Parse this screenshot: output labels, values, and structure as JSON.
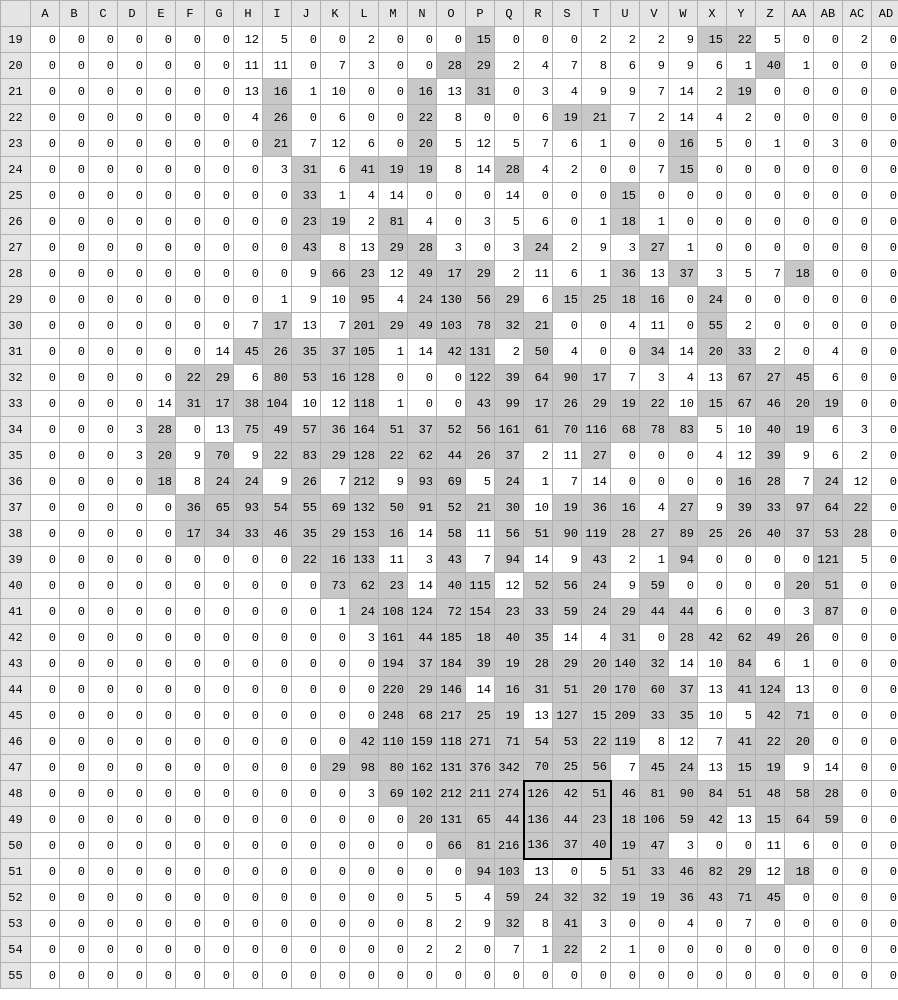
{
  "columns": [
    "A",
    "B",
    "C",
    "D",
    "E",
    "F",
    "G",
    "H",
    "I",
    "J",
    "K",
    "L",
    "M",
    "N",
    "O",
    "P",
    "Q",
    "R",
    "S",
    "T",
    "U",
    "V",
    "W",
    "X",
    "Y",
    "Z",
    "AA",
    "AB",
    "AC",
    "AD"
  ],
  "firstRow": 19,
  "lastRow": 55,
  "shadeThreshold": 15,
  "selection": {
    "row1": 48,
    "row2": 50,
    "colIdx1": 17,
    "colIdx2": 19
  },
  "rows": {
    "19": [
      0,
      0,
      0,
      0,
      0,
      0,
      0,
      12,
      5,
      0,
      0,
      2,
      0,
      0,
      0,
      15,
      0,
      0,
      0,
      2,
      2,
      2,
      9,
      15,
      22,
      5,
      0,
      0,
      2,
      0
    ],
    "20": [
      0,
      0,
      0,
      0,
      0,
      0,
      0,
      11,
      11,
      0,
      7,
      3,
      0,
      0,
      28,
      29,
      2,
      4,
      7,
      8,
      6,
      9,
      9,
      6,
      1,
      40,
      1,
      0,
      0,
      0
    ],
    "21": [
      0,
      0,
      0,
      0,
      0,
      0,
      0,
      13,
      16,
      1,
      10,
      0,
      0,
      16,
      13,
      31,
      0,
      3,
      4,
      9,
      9,
      7,
      14,
      2,
      19,
      0,
      0,
      0,
      0,
      0
    ],
    "22": [
      0,
      0,
      0,
      0,
      0,
      0,
      0,
      4,
      26,
      0,
      6,
      0,
      0,
      22,
      8,
      0,
      0,
      6,
      19,
      21,
      7,
      2,
      14,
      4,
      2,
      0,
      0,
      0,
      0,
      0
    ],
    "23": [
      0,
      0,
      0,
      0,
      0,
      0,
      0,
      0,
      21,
      7,
      12,
      6,
      0,
      20,
      5,
      12,
      5,
      7,
      6,
      1,
      0,
      0,
      16,
      5,
      0,
      1,
      0,
      3,
      0,
      0
    ],
    "24": [
      0,
      0,
      0,
      0,
      0,
      0,
      0,
      0,
      3,
      31,
      6,
      41,
      19,
      19,
      8,
      14,
      28,
      4,
      2,
      0,
      0,
      7,
      15,
      0,
      0,
      0,
      0,
      0,
      0,
      0
    ],
    "25": [
      0,
      0,
      0,
      0,
      0,
      0,
      0,
      0,
      0,
      33,
      1,
      4,
      14,
      0,
      0,
      0,
      14,
      0,
      0,
      0,
      15,
      0,
      0,
      0,
      0,
      0,
      0,
      0,
      0,
      0
    ],
    "26": [
      0,
      0,
      0,
      0,
      0,
      0,
      0,
      0,
      0,
      23,
      19,
      2,
      81,
      4,
      0,
      3,
      5,
      6,
      0,
      1,
      18,
      1,
      0,
      0,
      0,
      0,
      0,
      0,
      0,
      0
    ],
    "27": [
      0,
      0,
      0,
      0,
      0,
      0,
      0,
      0,
      0,
      43,
      8,
      13,
      29,
      28,
      3,
      0,
      3,
      24,
      2,
      9,
      3,
      27,
      1,
      0,
      0,
      0,
      0,
      0,
      0,
      0
    ],
    "28": [
      0,
      0,
      0,
      0,
      0,
      0,
      0,
      0,
      0,
      9,
      66,
      23,
      12,
      49,
      17,
      29,
      2,
      11,
      6,
      1,
      36,
      13,
      37,
      3,
      5,
      7,
      18,
      0,
      0,
      0
    ],
    "29": [
      0,
      0,
      0,
      0,
      0,
      0,
      0,
      0,
      1,
      9,
      10,
      95,
      4,
      24,
      130,
      56,
      29,
      6,
      15,
      25,
      18,
      16,
      0,
      24,
      0,
      0,
      0,
      0,
      0,
      0
    ],
    "30": [
      0,
      0,
      0,
      0,
      0,
      0,
      0,
      7,
      17,
      13,
      7,
      201,
      29,
      49,
      103,
      78,
      32,
      21,
      0,
      0,
      4,
      11,
      0,
      55,
      2,
      0,
      0,
      0,
      0,
      0
    ],
    "31": [
      0,
      0,
      0,
      0,
      0,
      0,
      14,
      45,
      26,
      35,
      37,
      105,
      1,
      14,
      42,
      131,
      2,
      50,
      4,
      0,
      0,
      34,
      14,
      20,
      33,
      2,
      0,
      4,
      0,
      0
    ],
    "32": [
      0,
      0,
      0,
      0,
      0,
      22,
      29,
      6,
      80,
      53,
      16,
      128,
      0,
      0,
      0,
      122,
      39,
      64,
      90,
      17,
      7,
      3,
      4,
      13,
      67,
      27,
      45,
      6,
      0,
      0
    ],
    "33": [
      0,
      0,
      0,
      0,
      14,
      31,
      17,
      38,
      104,
      10,
      12,
      118,
      1,
      0,
      0,
      43,
      99,
      17,
      26,
      29,
      19,
      22,
      10,
      15,
      67,
      46,
      20,
      19,
      0,
      0
    ],
    "34": [
      0,
      0,
      0,
      3,
      28,
      0,
      13,
      75,
      49,
      57,
      36,
      164,
      51,
      37,
      52,
      56,
      161,
      61,
      70,
      116,
      68,
      78,
      83,
      5,
      10,
      40,
      19,
      6,
      3,
      0
    ],
    "35": [
      0,
      0,
      0,
      3,
      20,
      9,
      70,
      9,
      22,
      83,
      29,
      128,
      22,
      62,
      44,
      26,
      37,
      2,
      11,
      27,
      0,
      0,
      0,
      4,
      12,
      39,
      9,
      6,
      2,
      0
    ],
    "36": [
      0,
      0,
      0,
      0,
      18,
      8,
      24,
      24,
      9,
      26,
      7,
      212,
      9,
      93,
      69,
      5,
      24,
      1,
      7,
      14,
      0,
      0,
      0,
      0,
      16,
      28,
      7,
      24,
      12,
      0
    ],
    "37": [
      0,
      0,
      0,
      0,
      0,
      36,
      65,
      93,
      54,
      55,
      69,
      132,
      50,
      91,
      52,
      21,
      30,
      10,
      19,
      36,
      16,
      4,
      27,
      9,
      39,
      33,
      97,
      64,
      22,
      0
    ],
    "38": [
      0,
      0,
      0,
      0,
      0,
      17,
      34,
      33,
      46,
      35,
      29,
      153,
      16,
      14,
      58,
      11,
      56,
      51,
      90,
      119,
      28,
      27,
      89,
      25,
      26,
      40,
      37,
      53,
      28,
      0
    ],
    "39": [
      0,
      0,
      0,
      0,
      0,
      0,
      0,
      0,
      0,
      22,
      16,
      133,
      11,
      3,
      43,
      7,
      94,
      14,
      9,
      43,
      2,
      1,
      94,
      0,
      0,
      0,
      0,
      121,
      5,
      0
    ],
    "40": [
      0,
      0,
      0,
      0,
      0,
      0,
      0,
      0,
      0,
      0,
      73,
      62,
      23,
      14,
      40,
      115,
      12,
      52,
      56,
      24,
      9,
      59,
      0,
      0,
      0,
      0,
      20,
      51,
      0,
      0
    ],
    "41": [
      0,
      0,
      0,
      0,
      0,
      0,
      0,
      0,
      0,
      0,
      1,
      24,
      108,
      124,
      72,
      154,
      23,
      33,
      59,
      24,
      29,
      44,
      44,
      6,
      0,
      0,
      3,
      87,
      0,
      0
    ],
    "42": [
      0,
      0,
      0,
      0,
      0,
      0,
      0,
      0,
      0,
      0,
      0,
      3,
      161,
      44,
      185,
      18,
      40,
      35,
      14,
      4,
      31,
      0,
      28,
      42,
      62,
      49,
      26,
      0,
      0,
      0
    ],
    "43": [
      0,
      0,
      0,
      0,
      0,
      0,
      0,
      0,
      0,
      0,
      0,
      0,
      194,
      37,
      184,
      39,
      19,
      28,
      29,
      20,
      140,
      32,
      14,
      10,
      84,
      6,
      1,
      0,
      0,
      0
    ],
    "44": [
      0,
      0,
      0,
      0,
      0,
      0,
      0,
      0,
      0,
      0,
      0,
      0,
      220,
      29,
      146,
      14,
      16,
      31,
      51,
      20,
      170,
      60,
      37,
      13,
      41,
      124,
      13,
      0,
      0,
      0
    ],
    "45": [
      0,
      0,
      0,
      0,
      0,
      0,
      0,
      0,
      0,
      0,
      0,
      0,
      248,
      68,
      217,
      25,
      19,
      13,
      127,
      15,
      209,
      33,
      35,
      10,
      5,
      42,
      71,
      0,
      0,
      0
    ],
    "46": [
      0,
      0,
      0,
      0,
      0,
      0,
      0,
      0,
      0,
      0,
      0,
      42,
      110,
      159,
      118,
      271,
      71,
      54,
      53,
      22,
      119,
      8,
      12,
      7,
      41,
      22,
      20,
      0,
      0,
      0
    ],
    "47": [
      0,
      0,
      0,
      0,
      0,
      0,
      0,
      0,
      0,
      0,
      29,
      98,
      80,
      162,
      131,
      376,
      342,
      70,
      25,
      56,
      7,
      45,
      24,
      13,
      15,
      19,
      9,
      14,
      0,
      0
    ],
    "48": [
      0,
      0,
      0,
      0,
      0,
      0,
      0,
      0,
      0,
      0,
      0,
      3,
      69,
      102,
      212,
      211,
      274,
      126,
      42,
      51,
      46,
      81,
      90,
      84,
      51,
      48,
      58,
      28,
      0,
      0
    ],
    "49": [
      0,
      0,
      0,
      0,
      0,
      0,
      0,
      0,
      0,
      0,
      0,
      0,
      0,
      20,
      131,
      65,
      44,
      136,
      44,
      23,
      18,
      106,
      59,
      42,
      13,
      15,
      64,
      59,
      0,
      0
    ],
    "50": [
      0,
      0,
      0,
      0,
      0,
      0,
      0,
      0,
      0,
      0,
      0,
      0,
      0,
      0,
      66,
      81,
      216,
      136,
      37,
      40,
      19,
      47,
      3,
      0,
      0,
      11,
      6,
      0,
      0,
      0
    ],
    "51": [
      0,
      0,
      0,
      0,
      0,
      0,
      0,
      0,
      0,
      0,
      0,
      0,
      0,
      0,
      0,
      94,
      103,
      13,
      0,
      5,
      51,
      33,
      46,
      82,
      29,
      12,
      18,
      0,
      0,
      0
    ],
    "52": [
      0,
      0,
      0,
      0,
      0,
      0,
      0,
      0,
      0,
      0,
      0,
      0,
      0,
      5,
      5,
      4,
      59,
      24,
      32,
      32,
      19,
      19,
      36,
      43,
      71,
      45,
      0,
      0,
      0,
      0
    ],
    "53": [
      0,
      0,
      0,
      0,
      0,
      0,
      0,
      0,
      0,
      0,
      0,
      0,
      0,
      8,
      2,
      9,
      32,
      8,
      41,
      3,
      0,
      0,
      4,
      0,
      7,
      0,
      0,
      0,
      0,
      0
    ],
    "54": [
      0,
      0,
      0,
      0,
      0,
      0,
      0,
      0,
      0,
      0,
      0,
      0,
      0,
      2,
      2,
      0,
      7,
      1,
      22,
      2,
      1,
      0,
      0,
      0,
      0,
      0,
      0,
      0,
      0,
      0
    ],
    "55": [
      0,
      0,
      0,
      0,
      0,
      0,
      0,
      0,
      0,
      0,
      0,
      0,
      0,
      0,
      0,
      0,
      0,
      0,
      0,
      0,
      0,
      0,
      0,
      0,
      0,
      0,
      0,
      0,
      0,
      0
    ]
  }
}
